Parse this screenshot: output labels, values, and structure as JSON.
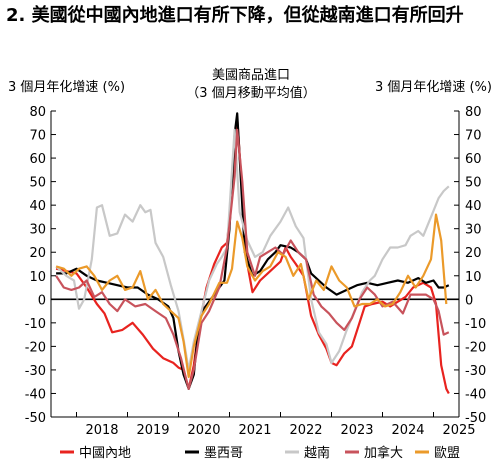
{
  "title": "2. 美國從中國內地進口有所下降，但從越南進口有所回升",
  "chart_data": {
    "type": "line",
    "ylabel_left": "3 個月年化增速 (%)",
    "ylabel_right": "3 個月年化增速 (%)",
    "annotation_line1": "美國商品進口",
    "annotation_line2": "（3 個月移動平均值）",
    "ylim": [
      -50,
      80
    ],
    "yticks": [
      "80",
      "70",
      "60",
      "50",
      "40",
      "30",
      "20",
      "10",
      "0",
      "-10",
      "-20",
      "-30",
      "-40",
      "-50"
    ],
    "x_range": [
      2017.5,
      2025.5
    ],
    "x_tick_labels": [
      "2018",
      "2019",
      "2020",
      "2021",
      "2022",
      "2023",
      "2024",
      "2025"
    ],
    "grid": false,
    "legend_position": "bottom",
    "series": [
      {
        "name": "中國內地",
        "color": "#e8231f",
        "points": [
          [
            2017.6,
            13
          ],
          [
            2017.8,
            12
          ],
          [
            2018.0,
            11
          ],
          [
            2018.2,
            5
          ],
          [
            2018.4,
            -2
          ],
          [
            2018.55,
            -6
          ],
          [
            2018.7,
            -14
          ],
          [
            2018.9,
            -13
          ],
          [
            2019.1,
            -10
          ],
          [
            2019.3,
            -15
          ],
          [
            2019.5,
            -21
          ],
          [
            2019.7,
            -25
          ],
          [
            2019.9,
            -27
          ],
          [
            2020.0,
            -29
          ],
          [
            2020.1,
            -30
          ],
          [
            2020.2,
            -38
          ],
          [
            2020.3,
            -28
          ],
          [
            2020.4,
            -12
          ],
          [
            2020.55,
            5
          ],
          [
            2020.7,
            15
          ],
          [
            2020.85,
            22
          ],
          [
            2020.95,
            24
          ],
          [
            2021.05,
            45
          ],
          [
            2021.15,
            77
          ],
          [
            2021.25,
            45
          ],
          [
            2021.35,
            15
          ],
          [
            2021.45,
            3
          ],
          [
            2021.6,
            8
          ],
          [
            2021.8,
            12
          ],
          [
            2022.0,
            16
          ],
          [
            2022.1,
            22
          ],
          [
            2022.2,
            18
          ],
          [
            2022.3,
            15
          ],
          [
            2022.45,
            10
          ],
          [
            2022.6,
            -7
          ],
          [
            2022.75,
            -15
          ],
          [
            2022.9,
            -21
          ],
          [
            2023.0,
            -27
          ],
          [
            2023.1,
            -28
          ],
          [
            2023.25,
            -23
          ],
          [
            2023.4,
            -20
          ],
          [
            2023.55,
            -10
          ],
          [
            2023.65,
            -3
          ],
          [
            2023.8,
            -2
          ],
          [
            2024.0,
            -1
          ],
          [
            2024.15,
            -3
          ],
          [
            2024.3,
            -1
          ],
          [
            2024.45,
            1
          ],
          [
            2024.6,
            5
          ],
          [
            2024.8,
            7
          ],
          [
            2024.95,
            5
          ],
          [
            2025.05,
            -2
          ],
          [
            2025.15,
            -28
          ],
          [
            2025.25,
            -38
          ],
          [
            2025.3,
            -40
          ]
        ]
      },
      {
        "name": "墨西哥",
        "color": "#000000",
        "points": [
          [
            2017.6,
            11
          ],
          [
            2017.8,
            11
          ],
          [
            2018.0,
            13
          ],
          [
            2018.2,
            10
          ],
          [
            2018.4,
            8
          ],
          [
            2018.6,
            7
          ],
          [
            2018.8,
            6
          ],
          [
            2019.0,
            5
          ],
          [
            2019.2,
            5
          ],
          [
            2019.4,
            2
          ],
          [
            2019.6,
            0
          ],
          [
            2019.8,
            -3
          ],
          [
            2019.9,
            -8
          ],
          [
            2020.0,
            -22
          ],
          [
            2020.1,
            -32
          ],
          [
            2020.2,
            -38
          ],
          [
            2020.3,
            -32
          ],
          [
            2020.4,
            -10
          ],
          [
            2020.5,
            -4
          ],
          [
            2020.7,
            2
          ],
          [
            2020.9,
            8
          ],
          [
            2021.0,
            30
          ],
          [
            2021.1,
            70
          ],
          [
            2021.15,
            79
          ],
          [
            2021.2,
            60
          ],
          [
            2021.3,
            20
          ],
          [
            2021.45,
            10
          ],
          [
            2021.6,
            12
          ],
          [
            2021.75,
            17
          ],
          [
            2021.9,
            20
          ],
          [
            2022.0,
            23
          ],
          [
            2022.2,
            22
          ],
          [
            2022.35,
            20
          ],
          [
            2022.5,
            17
          ],
          [
            2022.6,
            11
          ],
          [
            2022.75,
            8
          ],
          [
            2022.9,
            5
          ],
          [
            2023.1,
            2
          ],
          [
            2023.3,
            4
          ],
          [
            2023.5,
            6
          ],
          [
            2023.7,
            7
          ],
          [
            2023.9,
            6
          ],
          [
            2024.1,
            7
          ],
          [
            2024.3,
            8
          ],
          [
            2024.5,
            7
          ],
          [
            2024.7,
            9
          ],
          [
            2024.85,
            7
          ],
          [
            2025.0,
            8
          ],
          [
            2025.1,
            5
          ],
          [
            2025.2,
            5
          ],
          [
            2025.3,
            6
          ]
        ]
      },
      {
        "name": "越南",
        "color": "#c8c8c8",
        "points": [
          [
            2017.6,
            14
          ],
          [
            2017.8,
            10
          ],
          [
            2017.95,
            8
          ],
          [
            2018.05,
            -4
          ],
          [
            2018.15,
            0
          ],
          [
            2018.3,
            17
          ],
          [
            2018.4,
            39
          ],
          [
            2018.5,
            40
          ],
          [
            2018.65,
            27
          ],
          [
            2018.8,
            28
          ],
          [
            2018.95,
            36
          ],
          [
            2019.1,
            33
          ],
          [
            2019.25,
            40
          ],
          [
            2019.35,
            37
          ],
          [
            2019.45,
            38
          ],
          [
            2019.55,
            24
          ],
          [
            2019.7,
            18
          ],
          [
            2019.85,
            6
          ],
          [
            2020.0,
            -5
          ],
          [
            2020.1,
            -17
          ],
          [
            2020.2,
            -30
          ],
          [
            2020.3,
            -18
          ],
          [
            2020.45,
            -5
          ],
          [
            2020.6,
            8
          ],
          [
            2020.75,
            15
          ],
          [
            2020.85,
            18
          ],
          [
            2020.95,
            22
          ],
          [
            2021.1,
            72
          ],
          [
            2021.2,
            37
          ],
          [
            2021.35,
            25
          ],
          [
            2021.5,
            18
          ],
          [
            2021.65,
            20
          ],
          [
            2021.8,
            27
          ],
          [
            2022.0,
            33
          ],
          [
            2022.15,
            39
          ],
          [
            2022.3,
            31
          ],
          [
            2022.45,
            26
          ],
          [
            2022.6,
            0
          ],
          [
            2022.75,
            -14
          ],
          [
            2022.9,
            -19
          ],
          [
            2023.0,
            -27
          ],
          [
            2023.15,
            -22
          ],
          [
            2023.3,
            -13
          ],
          [
            2023.45,
            -5
          ],
          [
            2023.6,
            3
          ],
          [
            2023.75,
            8
          ],
          [
            2023.85,
            10
          ],
          [
            2024.0,
            17
          ],
          [
            2024.15,
            22
          ],
          [
            2024.3,
            22
          ],
          [
            2024.45,
            23
          ],
          [
            2024.55,
            27
          ],
          [
            2024.7,
            29
          ],
          [
            2024.8,
            27
          ],
          [
            2024.95,
            35
          ],
          [
            2025.1,
            43
          ],
          [
            2025.2,
            46
          ],
          [
            2025.3,
            48
          ]
        ]
      },
      {
        "name": "加拿大",
        "color": "#c8535c",
        "points": [
          [
            2017.6,
            10
          ],
          [
            2017.75,
            5
          ],
          [
            2017.9,
            4
          ],
          [
            2018.05,
            5
          ],
          [
            2018.2,
            8
          ],
          [
            2018.35,
            1
          ],
          [
            2018.5,
            3
          ],
          [
            2018.65,
            -2
          ],
          [
            2018.8,
            -5
          ],
          [
            2018.95,
            0
          ],
          [
            2019.15,
            -3
          ],
          [
            2019.35,
            -2
          ],
          [
            2019.55,
            -5
          ],
          [
            2019.75,
            -8
          ],
          [
            2019.9,
            -15
          ],
          [
            2020.05,
            -25
          ],
          [
            2020.15,
            -34
          ],
          [
            2020.2,
            -38
          ],
          [
            2020.3,
            -30
          ],
          [
            2020.45,
            -10
          ],
          [
            2020.6,
            -5
          ],
          [
            2020.8,
            5
          ],
          [
            2020.95,
            22
          ],
          [
            2021.1,
            52
          ],
          [
            2021.15,
            72
          ],
          [
            2021.25,
            50
          ],
          [
            2021.35,
            20
          ],
          [
            2021.5,
            10
          ],
          [
            2021.6,
            18
          ],
          [
            2021.75,
            20
          ],
          [
            2021.9,
            22
          ],
          [
            2022.05,
            19
          ],
          [
            2022.2,
            25
          ],
          [
            2022.35,
            20
          ],
          [
            2022.5,
            17
          ],
          [
            2022.65,
            2
          ],
          [
            2022.8,
            -3
          ],
          [
            2022.95,
            -6
          ],
          [
            2023.1,
            -10
          ],
          [
            2023.25,
            -13
          ],
          [
            2023.4,
            -8
          ],
          [
            2023.55,
            0
          ],
          [
            2023.7,
            5
          ],
          [
            2023.85,
            2
          ],
          [
            2024.0,
            -3
          ],
          [
            2024.2,
            -1
          ],
          [
            2024.4,
            -6
          ],
          [
            2024.55,
            2
          ],
          [
            2024.7,
            2
          ],
          [
            2024.85,
            2
          ],
          [
            2025.0,
            0
          ],
          [
            2025.1,
            -5
          ],
          [
            2025.2,
            -15
          ],
          [
            2025.3,
            -14
          ]
        ]
      },
      {
        "name": "歐盟",
        "color": "#eb9a2a",
        "points": [
          [
            2017.6,
            14
          ],
          [
            2017.75,
            13
          ],
          [
            2017.9,
            10
          ],
          [
            2018.05,
            13
          ],
          [
            2018.2,
            14
          ],
          [
            2018.35,
            10
          ],
          [
            2018.5,
            4
          ],
          [
            2018.65,
            8
          ],
          [
            2018.8,
            10
          ],
          [
            2018.95,
            4
          ],
          [
            2019.1,
            5
          ],
          [
            2019.25,
            12
          ],
          [
            2019.4,
            0
          ],
          [
            2019.55,
            4
          ],
          [
            2019.7,
            -2
          ],
          [
            2019.85,
            -5
          ],
          [
            2020.0,
            -8
          ],
          [
            2020.1,
            -18
          ],
          [
            2020.2,
            -33
          ],
          [
            2020.3,
            -20
          ],
          [
            2020.45,
            -7
          ],
          [
            2020.6,
            -2
          ],
          [
            2020.8,
            7
          ],
          [
            2020.95,
            7
          ],
          [
            2021.05,
            13
          ],
          [
            2021.15,
            33
          ],
          [
            2021.25,
            26
          ],
          [
            2021.35,
            14
          ],
          [
            2021.5,
            8
          ],
          [
            2021.65,
            12
          ],
          [
            2021.8,
            14
          ],
          [
            2021.95,
            20
          ],
          [
            2022.1,
            18
          ],
          [
            2022.25,
            10
          ],
          [
            2022.4,
            15
          ],
          [
            2022.55,
            0
          ],
          [
            2022.7,
            8
          ],
          [
            2022.85,
            4
          ],
          [
            2023.0,
            14
          ],
          [
            2023.15,
            8
          ],
          [
            2023.3,
            5
          ],
          [
            2023.45,
            -3
          ],
          [
            2023.6,
            -2
          ],
          [
            2023.75,
            -2
          ],
          [
            2023.9,
            0
          ],
          [
            2024.05,
            -3
          ],
          [
            2024.2,
            -2
          ],
          [
            2024.35,
            3
          ],
          [
            2024.5,
            10
          ],
          [
            2024.65,
            5
          ],
          [
            2024.8,
            10
          ],
          [
            2024.95,
            17
          ],
          [
            2025.05,
            36
          ],
          [
            2025.15,
            25
          ],
          [
            2025.25,
            -2
          ]
        ]
      }
    ]
  }
}
